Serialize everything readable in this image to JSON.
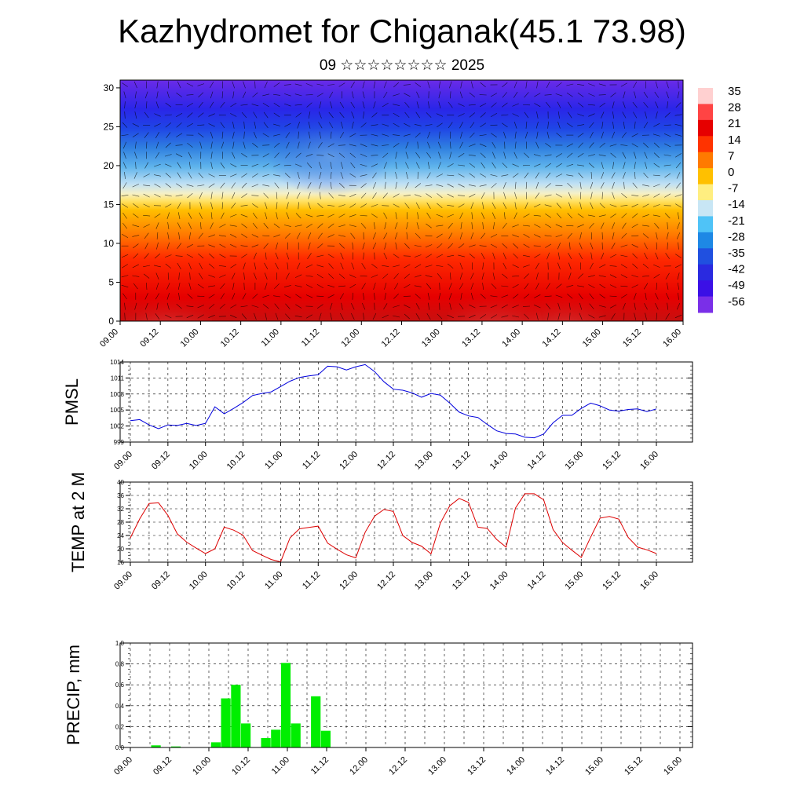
{
  "header": {
    "title": "Kazhydromet for Chiganak(45.1 73.98)",
    "subtitle": "09 ☆☆☆☆☆☆☆☆ 2025"
  },
  "chart_data": [
    {
      "id": "cross-section",
      "type": "heatmap",
      "title": "",
      "ylabel": "",
      "xlabel": "",
      "ylim": [
        0,
        31
      ],
      "yticks": [
        0,
        5,
        10,
        15,
        20,
        25,
        30
      ],
      "x_labels": [
        "09.00",
        "09.12",
        "10.00",
        "10.12",
        "11.00",
        "11.12",
        "12.00",
        "12.12",
        "13.00",
        "13.12",
        "14.00",
        "14.12",
        "15.00",
        "15.12",
        "16.00"
      ],
      "colorbar": {
        "labels": [
          "35",
          "28",
          "21",
          "14",
          "7",
          "0",
          "-7",
          "-14",
          "-21",
          "-28",
          "-35",
          "-42",
          "-49",
          "-56"
        ],
        "colors": [
          "#ffd0d0",
          "#ff4444",
          "#e60000",
          "#ff3300",
          "#ff7a00",
          "#ffc000",
          "#ffee80",
          "#c8e6f5",
          "#4fc3f7",
          "#1e88e5",
          "#2050e0",
          "#2a2ae0",
          "#3b10e6",
          "#7a2fe8"
        ]
      },
      "vectors": true
    },
    {
      "id": "pmsl",
      "type": "line",
      "ylabel": "PMSL",
      "ylim": [
        999,
        1014
      ],
      "yticks": [
        999,
        1002,
        1005,
        1008,
        1011,
        1014
      ],
      "color": "#0000dd",
      "x_labels": [
        "09.00",
        "09.12",
        "10.00",
        "10.12",
        "11.00",
        "11.12",
        "12.00",
        "12.12",
        "13.00",
        "13.12",
        "14.00",
        "14.12",
        "15.00",
        "15.12",
        "16.00"
      ],
      "values": [
        1003,
        1003.2,
        1002.2,
        1001.5,
        1002.2,
        1002.1,
        1002.5,
        1002.1,
        1002.5,
        1005.6,
        1004.3,
        1005.3,
        1006.4,
        1007.7,
        1008.1,
        1008.4,
        1009.4,
        1010.4,
        1011.1,
        1011.4,
        1011.6,
        1013.2,
        1013.1,
        1012.5,
        1013.1,
        1013.5,
        1012.2,
        1010.3,
        1008.9,
        1008.7,
        1008.2,
        1007.4,
        1008.1,
        1007.8,
        1006.3,
        1004.6,
        1003.9,
        1003.6,
        1002.3,
        1001.1,
        1000.6,
        1000.5,
        999.9,
        999.8,
        1000.5,
        1002.6,
        1004,
        1004,
        1005.3,
        1006.3,
        1005.8,
        1005,
        1004.8,
        1005.1,
        1005.2,
        1004.7,
        1005.2
      ]
    },
    {
      "id": "temp",
      "type": "line",
      "ylabel": "TEMP at 2 M",
      "ylim": [
        16,
        40
      ],
      "yticks": [
        16,
        20,
        24,
        28,
        32,
        36,
        40
      ],
      "color": "#dd0000",
      "x_labels": [
        "09.00",
        "09.12",
        "10.00",
        "10.12",
        "11.00",
        "11.12",
        "12.00",
        "12.12",
        "13.00",
        "13.12",
        "14.00",
        "14.12",
        "15.00",
        "15.12",
        "16.00"
      ],
      "values": [
        23.3,
        29,
        33.6,
        33.8,
        30,
        24.5,
        22,
        20.2,
        18.6,
        20,
        26.5,
        25.6,
        24.1,
        19.5,
        18.1,
        16.8,
        16.1,
        23.3,
        26,
        26.4,
        26.8,
        21.7,
        19.9,
        18.2,
        17.3,
        25,
        29.8,
        31.8,
        31.2,
        24,
        21.9,
        20.8,
        18.5,
        27.7,
        32.9,
        35.1,
        33.9,
        26.5,
        26.1,
        22.8,
        20.5,
        32.2,
        36.5,
        36.5,
        34.7,
        25.8,
        21.9,
        19.6,
        17.4,
        23.5,
        29.2,
        29.7,
        28.9,
        23.4,
        20.5,
        19.7,
        18.6
      ]
    },
    {
      "id": "precip",
      "type": "bar",
      "ylabel": "PRECIP, mm",
      "ylim": [
        0,
        1
      ],
      "yticks": [
        0,
        0.2,
        0.4,
        0.6,
        0.8,
        1.0
      ],
      "ytick_labels": [
        "0.0",
        "0.2",
        "0.4",
        "0.6",
        "0.8",
        "1.0"
      ],
      "color": "#00ee00",
      "x_labels": [
        "09.00",
        "09.12",
        "10.00",
        "10.12",
        "11.00",
        "11.12",
        "12.00",
        "12.12",
        "13.00",
        "13.12",
        "14.00",
        "14.12",
        "15.00",
        "15.12",
        "16.00"
      ],
      "values": [
        0,
        0,
        0.02,
        0,
        0.01,
        0,
        0,
        0,
        0.05,
        0.47,
        0.6,
        0.23,
        0,
        0.09,
        0.17,
        0.81,
        0.23,
        0,
        0.49,
        0.16,
        0,
        0,
        0,
        0,
        0,
        0,
        0,
        0,
        0,
        0,
        0,
        0,
        0,
        0,
        0,
        0,
        0,
        0,
        0,
        0,
        0,
        0,
        0,
        0,
        0,
        0,
        0,
        0,
        0,
        0,
        0,
        0,
        0,
        0,
        0,
        0
      ]
    }
  ]
}
